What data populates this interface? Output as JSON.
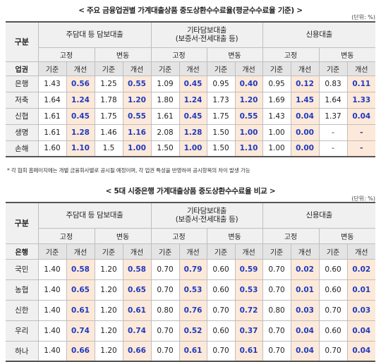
{
  "table1": {
    "title": "< 주요 금융업권별 가계대출상품 중도상환수수료율(평균수수료율 기준) >",
    "unit": "(단위: %)",
    "corner_top": "구분",
    "corner_bottom": "업권",
    "groups": [
      "주담대 등 담보대출",
      "기타담보대출\n(보증서·전세대출 등)",
      "신용대출"
    ],
    "fixed_label": "고정",
    "variable_label": "변동",
    "base_label": "기준",
    "improved_label": "개선",
    "rows": [
      {
        "label": "은행",
        "values": [
          "1.43",
          "0.56",
          "1.25",
          "0.55",
          "1.09",
          "0.45",
          "0.95",
          "0.40",
          "0.95",
          "0.12",
          "0.83",
          "0.11"
        ]
      },
      {
        "label": "저축",
        "values": [
          "1.64",
          "1.24",
          "1.78",
          "1.20",
          "1.80",
          "1.24",
          "1.73",
          "1.20",
          "1.69",
          "1.45",
          "1.64",
          "1.33"
        ]
      },
      {
        "label": "신협",
        "values": [
          "1.61",
          "0.45",
          "1.75",
          "0.55",
          "1.61",
          "0.45",
          "1.75",
          "0.55",
          "1.43",
          "0.04",
          "1.37",
          "0.04"
        ]
      },
      {
        "label": "생명",
        "values": [
          "1.61",
          "1.28",
          "1.46",
          "1.16",
          "2.08",
          "1.28",
          "1.50",
          "1.00",
          "1.00",
          "0.00",
          "-",
          "-"
        ]
      },
      {
        "label": "손해",
        "values": [
          "1.60",
          "1.10",
          "1.5",
          "1.00",
          "1.50",
          "1.00",
          "1.50",
          "1.10",
          "1.00",
          "0.00",
          "-",
          "-"
        ]
      }
    ],
    "note": "* 각 협회 홈페이지에는 개별 금융회사별로 공시될 예정이며, 각 업권 특성을 반영하여 공시항목의 차이 발생 가능"
  },
  "table2": {
    "title": "< 5대 시중은행 가계대출상품 중도상환수수료율 비교 >",
    "unit": "(단위: %)",
    "corner_top": "구분",
    "corner_bottom": "은행",
    "groups": [
      "주담대 등 담보대출",
      "기타담보대출\n(보증서·전세대출 등)",
      "신용대출"
    ],
    "fixed_label": "고정",
    "variable_label": "변동",
    "base_label": "기준",
    "improved_label": "개선",
    "rows": [
      {
        "label": "국민",
        "values": [
          "1.40",
          "0.58",
          "1.20",
          "0.58",
          "0.70",
          "0.79",
          "0.60",
          "0.59",
          "0.70",
          "0.02",
          "0.60",
          "0.02"
        ]
      },
      {
        "label": "농협",
        "values": [
          "1.40",
          "0.65",
          "1.20",
          "0.65",
          "0.70",
          "0.53",
          "0.60",
          "0.53",
          "0.70",
          "0.01",
          "0.60",
          "0.01"
        ]
      },
      {
        "label": "신한",
        "values": [
          "1.40",
          "0.61",
          "1.20",
          "0.61",
          "0.80",
          "0.76",
          "0.70",
          "0.72",
          "0.80",
          "0.03",
          "0.70",
          "0.03"
        ]
      },
      {
        "label": "우리",
        "values": [
          "1.40",
          "0.74",
          "1.20",
          "0.74",
          "0.70",
          "0.52",
          "0.60",
          "0.37",
          "0.70",
          "0.04",
          "0.60",
          "0.04"
        ]
      },
      {
        "label": "하나",
        "values": [
          "1.40",
          "0.66",
          "1.20",
          "0.66",
          "0.70",
          "0.61",
          "0.70",
          "0.61",
          "0.70",
          "0.04",
          "0.70",
          "0.04"
        ]
      }
    ]
  }
}
